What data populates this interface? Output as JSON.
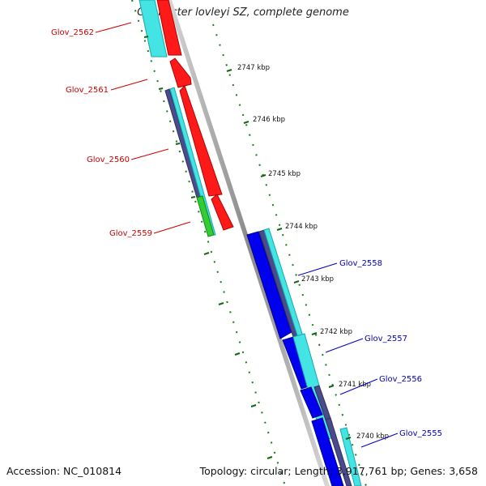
{
  "title": "Geobacter lovleyi SZ, complete genome",
  "footer": {
    "accession": "Accession: NC_010814",
    "topology": "Topology: circular; Length: 3,917,761 bp; Genes: 3,658"
  },
  "ticks": [
    "2747 kbp",
    "2746 kbp",
    "2745 kbp",
    "2744 kbp",
    "2743 kbp",
    "2742 kbp",
    "2741 kbp",
    "2740 kbp"
  ],
  "genes": {
    "reverse_strand": [
      "Glov_2562",
      "Glov_2561",
      "Glov_2560",
      "Glov_2559"
    ],
    "forward_strand": [
      "Glov_2558",
      "Glov_2557",
      "Glov_2556",
      "Glov_2555"
    ]
  },
  "colors": {
    "reverse_gene": "#ff0000",
    "forward_gene": "#0000ee",
    "cds_cyan": "#33e8e8",
    "cds_slate": "#4a4a8c",
    "rna_green": "#33cc33",
    "backbone": "#888888",
    "tick_green": "#116611",
    "reverse_label": "#cc0000",
    "forward_label": "#0000bb"
  }
}
